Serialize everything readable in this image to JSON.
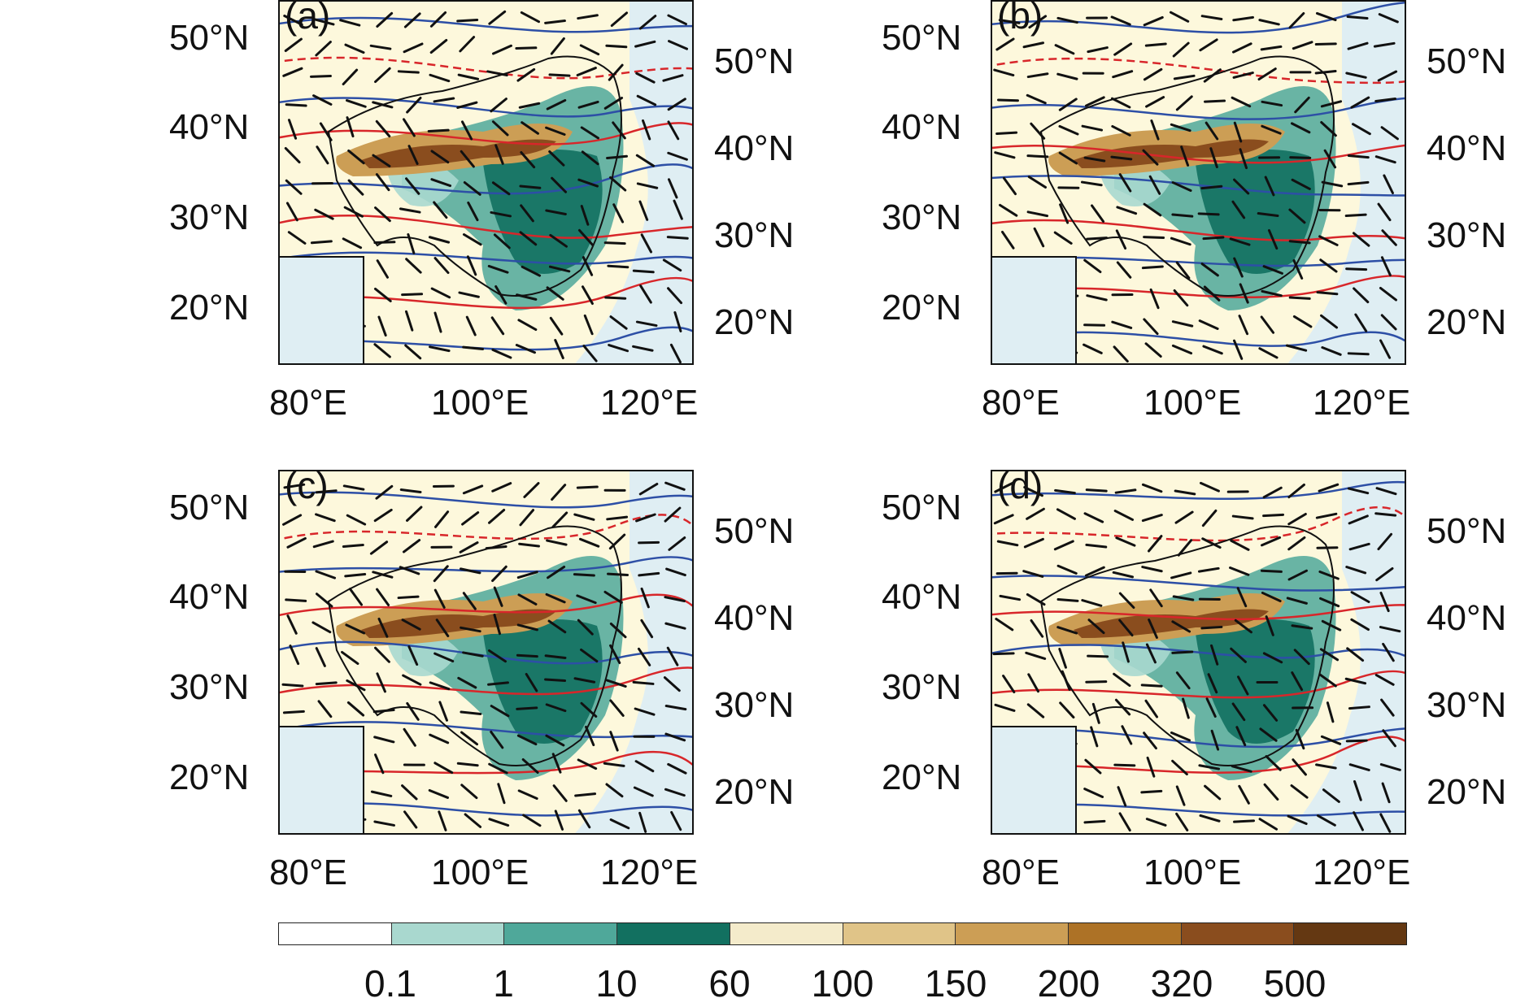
{
  "panels": [
    {
      "label": "(a)"
    },
    {
      "label": "(b)"
    },
    {
      "label": "(c)"
    },
    {
      "label": "(d)"
    }
  ],
  "axes": {
    "lat_left": [
      "50°N",
      "40°N",
      "30°N",
      "20°N"
    ],
    "lat_right": [
      "50°N",
      "40°N",
      "30°N",
      "20°N"
    ],
    "lon_bottom": [
      "80°E",
      "100°E",
      "120°E"
    ]
  },
  "colorbar": {
    "ticks": [
      "0.1",
      "1",
      "10",
      "60",
      "100",
      "150",
      "200",
      "320",
      "500"
    ],
    "colors": [
      "#ffffff",
      "#a9d8cf",
      "#4fa89a",
      "#127060",
      "#f4ebcb",
      "#e0c488",
      "#cc9e55",
      "#ad7226",
      "#8a4d1e",
      "#643812"
    ]
  },
  "colors": {
    "land": "#fdf8dc",
    "sea": "#dfeef3",
    "contour_blue": "#2d4fa6",
    "contour_red": "#d8262a",
    "wind_barb": "#111111"
  }
}
